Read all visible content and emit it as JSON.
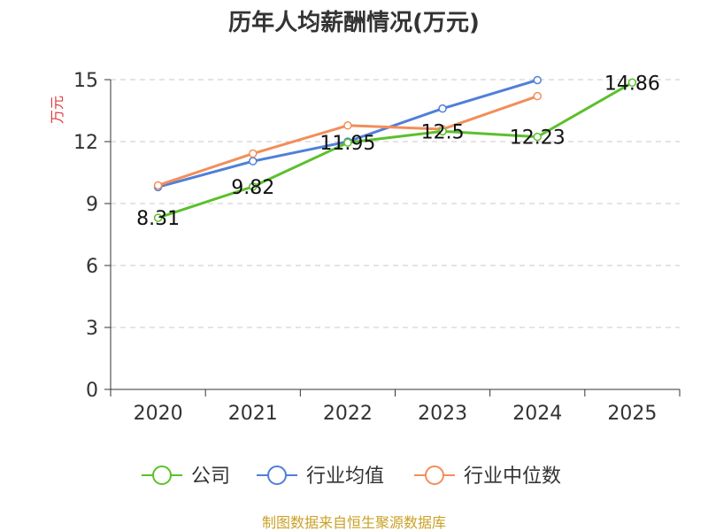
{
  "chart_data": {
    "type": "line",
    "title": "历年人均薪酬情况(万元)",
    "ylabel": "万元",
    "categories": [
      "2020",
      "2021",
      "2022",
      "2023",
      "2024",
      "2025"
    ],
    "ylim": [
      0,
      15
    ],
    "yticks": [
      0,
      3,
      6,
      9,
      12,
      15
    ],
    "grid": true,
    "legend_position": "bottom",
    "series": [
      {
        "name": "公司",
        "color": "#5cc02c",
        "values": [
          8.31,
          9.82,
          11.95,
          12.5,
          12.23,
          14.86
        ],
        "labels": [
          "8.31",
          "9.82",
          "11.95",
          "12.5",
          "12.23",
          "14.86"
        ]
      },
      {
        "name": "行业均值",
        "color": "#4f7fd8",
        "values": [
          9.8,
          11.05,
          12.0,
          13.6,
          14.98,
          null
        ]
      },
      {
        "name": "行业中位数",
        "color": "#f28e5a",
        "values": [
          9.88,
          11.42,
          12.78,
          12.6,
          14.2,
          null
        ]
      }
    ]
  },
  "source": "制图数据来自恒生聚源数据库"
}
